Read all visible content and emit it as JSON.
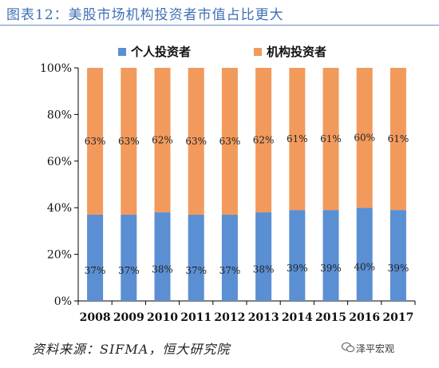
{
  "title": "图表12：美股市场机构投资者市值占比更大",
  "source": "资料来源：SIFMA，恒大研究院",
  "watermark": "泽平宏观",
  "colors": {
    "individual": "#5b8fd3",
    "institutional": "#f29a5c",
    "title": "#3f6fb5"
  },
  "chart_data": {
    "type": "bar",
    "stacked": true,
    "categories": [
      "2008",
      "2009",
      "2010",
      "2011",
      "2012",
      "2013",
      "2014",
      "2015",
      "2016",
      "2017"
    ],
    "series": [
      {
        "name": "个人投资者",
        "values": [
          37,
          37,
          38,
          37,
          37,
          38,
          39,
          39,
          40,
          39
        ],
        "labels": [
          "37%",
          "37%",
          "38%",
          "37%",
          "37%",
          "38%",
          "39%",
          "39%",
          "40%",
          "39%"
        ]
      },
      {
        "name": "机构投资者",
        "values": [
          63,
          63,
          62,
          63,
          63,
          62,
          61,
          61,
          60,
          61
        ],
        "labels": [
          "63%",
          "63%",
          "62%",
          "63%",
          "63%",
          "62%",
          "61%",
          "61%",
          "60%",
          "61%"
        ]
      }
    ],
    "ylim": [
      0,
      100
    ],
    "yticks": [
      "0%",
      "20%",
      "40%",
      "60%",
      "80%",
      "100%"
    ],
    "legend": "top",
    "grid": false
  }
}
